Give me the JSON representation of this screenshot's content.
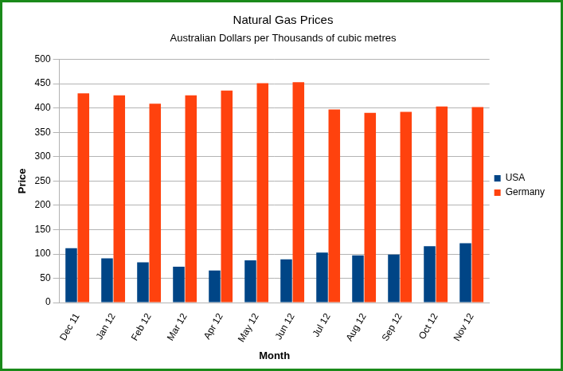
{
  "chart_data": {
    "type": "bar",
    "title": "Natural Gas Prices",
    "subtitle": "Australian Dollars per Thousands of cubic metres",
    "x_label": "Month",
    "y_label": "Price",
    "categories": [
      "Dec 11",
      "Jan 12",
      "Feb 12",
      "Mar 12",
      "Apr 12",
      "May 12",
      "Jun 12",
      "Jul 12",
      "Aug 12",
      "Sep 12",
      "Oct 12",
      "Nov 12"
    ],
    "series": [
      {
        "name": "USA",
        "color": "#004586",
        "values": [
          112,
          91,
          83,
          74,
          66,
          87,
          89,
          103,
          97,
          99,
          116,
          122
        ]
      },
      {
        "name": "Germany",
        "color": "#ff420e",
        "values": [
          430,
          426,
          409,
          426,
          436,
          451,
          453,
          397,
          390,
          392,
          403,
          402
        ]
      }
    ],
    "ylim": [
      0,
      500
    ],
    "yticks": [
      0,
      50,
      100,
      150,
      200,
      250,
      300,
      350,
      400,
      450,
      500
    ],
    "grid": true,
    "legend": "right"
  }
}
